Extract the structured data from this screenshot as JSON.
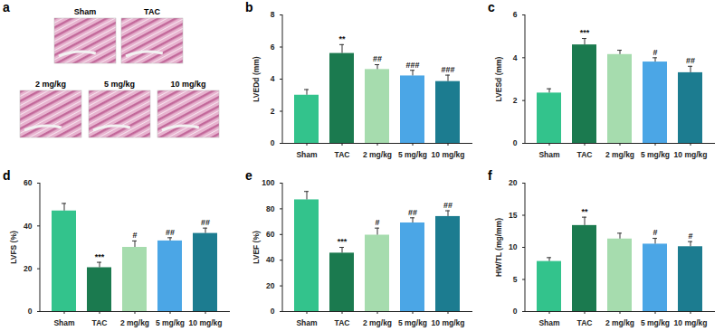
{
  "chart_data": [
    {
      "panel": "a",
      "type": "image",
      "labels": [
        "Sham",
        "TAC",
        "2 mg/kg",
        "5 mg/kg",
        "10 mg/kg"
      ]
    },
    {
      "panel": "b",
      "type": "bar",
      "y_label": "LVEDd (mm)",
      "categories": [
        "Sham",
        "TAC",
        "2 mg/kg",
        "5 mg/kg",
        "10 mg/kg"
      ],
      "values": [
        3.0,
        5.6,
        4.6,
        4.2,
        3.85
      ],
      "errors": [
        0.35,
        0.55,
        0.3,
        0.35,
        0.4
      ],
      "annotations": [
        null,
        "**",
        "##",
        "###",
        "###"
      ],
      "colors": [
        "#33c38c",
        "#1b7a4f",
        "#a6dcae",
        "#4ba6e6",
        "#1c7c90"
      ],
      "ylim": [
        0,
        8
      ],
      "yticks": [
        0,
        2,
        4,
        6,
        8
      ]
    },
    {
      "panel": "c",
      "type": "bar",
      "y_label": "LVESd (mm)",
      "categories": [
        "Sham",
        "TAC",
        "2 mg/kg",
        "5 mg/kg",
        "10 mg/kg"
      ],
      "values": [
        2.35,
        4.6,
        4.15,
        3.8,
        3.3
      ],
      "errors": [
        0.2,
        0.3,
        0.2,
        0.2,
        0.3
      ],
      "annotations": [
        null,
        "***",
        null,
        "#",
        "##"
      ],
      "colors": [
        "#33c38c",
        "#1b7a4f",
        "#a6dcae",
        "#4ba6e6",
        "#1c7c90"
      ],
      "ylim": [
        0,
        6
      ],
      "yticks": [
        0,
        2,
        4,
        6
      ]
    },
    {
      "panel": "d",
      "type": "bar",
      "y_label": "LVFS (%)",
      "categories": [
        "Sham",
        "TAC",
        "2 mg/kg",
        "5 mg/kg",
        "10 mg/kg"
      ],
      "values": [
        47,
        20.5,
        30,
        33,
        36.5
      ],
      "errors": [
        3.5,
        2.5,
        3,
        1.5,
        2.5
      ],
      "annotations": [
        null,
        "***",
        "#",
        "##",
        "##"
      ],
      "colors": [
        "#33c38c",
        "#1b7a4f",
        "#a6dcae",
        "#4ba6e6",
        "#1c7c90"
      ],
      "ylim": [
        0,
        60
      ],
      "yticks": [
        0,
        20,
        40,
        60
      ]
    },
    {
      "panel": "e",
      "type": "bar",
      "y_label": "LVEF (%)",
      "categories": [
        "Sham",
        "TAC",
        "2 mg/kg",
        "5 mg/kg",
        "10 mg/kg"
      ],
      "values": [
        87,
        45.5,
        59.5,
        69,
        74
      ],
      "errors": [
        6.5,
        4.5,
        5.5,
        4,
        4.5
      ],
      "annotations": [
        null,
        "***",
        "#",
        "##",
        "##"
      ],
      "colors": [
        "#33c38c",
        "#1b7a4f",
        "#a6dcae",
        "#4ba6e6",
        "#1c7c90"
      ],
      "ylim": [
        0,
        100
      ],
      "yticks": [
        0,
        20,
        40,
        60,
        80,
        100
      ]
    },
    {
      "panel": "f",
      "type": "bar",
      "y_label": "HW/TL (mg/mm)",
      "categories": [
        "Sham",
        "TAC",
        "2 mg/kg",
        "5 mg/kg",
        "10 mg/kg"
      ],
      "values": [
        7.8,
        13.4,
        11.3,
        10.5,
        10.1
      ],
      "errors": [
        0.6,
        1.3,
        0.9,
        0.9,
        0.8
      ],
      "annotations": [
        null,
        "**",
        null,
        "#",
        "#"
      ],
      "colors": [
        "#33c38c",
        "#1b7a4f",
        "#a6dcae",
        "#4ba6e6",
        "#1c7c90"
      ],
      "ylim": [
        0,
        20
      ],
      "yticks": [
        0,
        5,
        10,
        15,
        20
      ]
    }
  ]
}
